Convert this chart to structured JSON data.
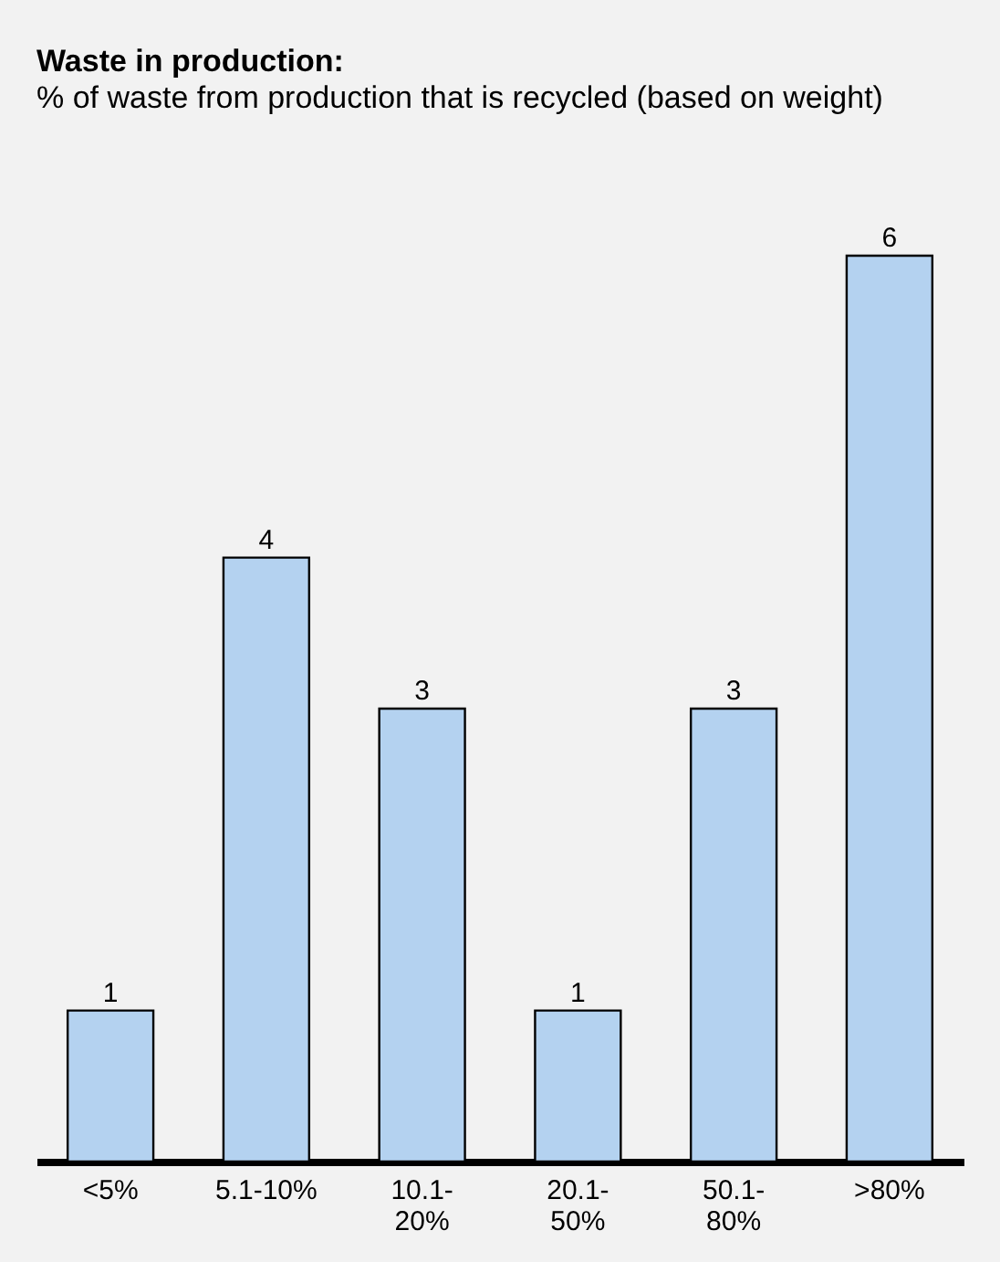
{
  "chart_data": {
    "type": "bar",
    "title": "Waste in production:",
    "subtitle": "% of waste from production that is recycled (based on weight)",
    "categories": [
      "<5%",
      "5.1-10%",
      "10.1-20%",
      "20.1-50%",
      "50.1-80%",
      ">80%"
    ],
    "values": [
      1,
      4,
      3,
      1,
      3,
      6
    ],
    "color": "#b4d2f0",
    "data_labels": true
  }
}
